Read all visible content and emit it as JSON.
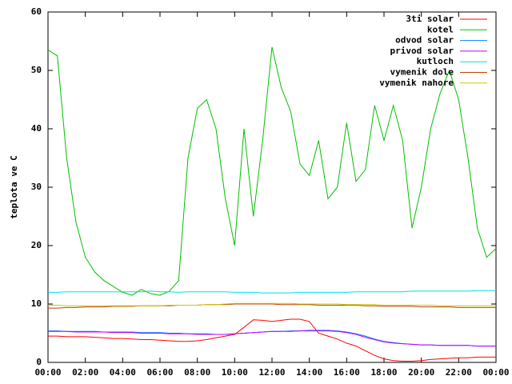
{
  "chart_data": {
    "type": "line",
    "ylabel": "teplota ve C",
    "x": [
      0,
      0.5,
      1,
      1.5,
      2,
      2.5,
      3,
      3.5,
      4,
      4.5,
      5,
      5.5,
      6,
      6.5,
      7,
      7.5,
      8,
      8.5,
      9,
      9.5,
      10,
      10.5,
      11,
      11.5,
      12,
      12.5,
      13,
      13.5,
      14,
      14.5,
      15,
      15.5,
      16,
      16.5,
      17,
      17.5,
      18,
      18.5,
      19,
      19.5,
      20,
      20.5,
      21,
      21.5,
      22,
      22.5,
      23,
      23.5,
      24
    ],
    "xlim": [
      0,
      24
    ],
    "xticks": [
      {
        "value": 0,
        "label": "00:00"
      },
      {
        "value": 2,
        "label": "02:00"
      },
      {
        "value": 4,
        "label": "04:00"
      },
      {
        "value": 6,
        "label": "06:00"
      },
      {
        "value": 8,
        "label": "08:00"
      },
      {
        "value": 10,
        "label": "10:00"
      },
      {
        "value": 12,
        "label": "12:00"
      },
      {
        "value": 14,
        "label": "14:00"
      },
      {
        "value": 16,
        "label": "16:00"
      },
      {
        "value": 18,
        "label": "18:00"
      },
      {
        "value": 20,
        "label": "20:00"
      },
      {
        "value": 22,
        "label": "22:00"
      },
      {
        "value": 24,
        "label": "00:00"
      }
    ],
    "ylim": [
      0,
      60
    ],
    "yticks": [
      0,
      10,
      20,
      30,
      40,
      50,
      60
    ],
    "legend": "top-right",
    "series": [
      {
        "name": "3ti solar",
        "color": "#ff0000",
        "values": [
          4.5,
          4.5,
          4.4,
          4.4,
          4.4,
          4.3,
          4.2,
          4.1,
          4.1,
          4.0,
          3.9,
          3.9,
          3.8,
          3.7,
          3.6,
          3.6,
          3.7,
          3.9,
          4.2,
          4.5,
          4.8,
          6.0,
          7.3,
          7.2,
          7.0,
          7.2,
          7.4,
          7.4,
          7.0,
          5.0,
          4.5,
          4.0,
          3.3,
          2.8,
          2.0,
          1.2,
          0.6,
          0.3,
          0.2,
          0.2,
          0.3,
          0.5,
          0.6,
          0.7,
          0.8,
          0.8,
          0.9,
          0.9,
          0.9
        ]
      },
      {
        "name": "kotel",
        "color": "#00c000",
        "values": [
          53.5,
          52.5,
          35,
          24,
          18,
          15.5,
          14,
          13,
          12,
          11.5,
          12.5,
          11.8,
          11.5,
          12.2,
          14,
          35,
          43.5,
          45,
          40,
          28,
          20,
          40,
          25,
          38,
          54,
          47,
          43,
          34,
          32,
          38,
          28,
          30,
          41,
          31,
          33,
          44,
          38,
          44,
          38,
          23,
          30,
          40,
          46,
          50,
          45,
          35,
          23,
          18,
          19.5
        ]
      },
      {
        "name": "odvod solar",
        "color": "#0080ff",
        "values": [
          5.4,
          5.4,
          5.3,
          5.3,
          5.3,
          5.3,
          5.2,
          5.2,
          5.2,
          5.2,
          5.1,
          5.1,
          5.1,
          5.0,
          5.0,
          4.9,
          4.9,
          4.9,
          4.8,
          4.8,
          4.9,
          5.0,
          5.1,
          5.2,
          5.3,
          5.3,
          5.4,
          5.4,
          5.5,
          5.5,
          5.5,
          5.4,
          5.2,
          4.9,
          4.5,
          4.0,
          3.6,
          3.4,
          3.2,
          3.1,
          3.0,
          3.0,
          2.9,
          2.9,
          2.9,
          2.9,
          2.8,
          2.8,
          2.8
        ]
      },
      {
        "name": "privod solar",
        "color": "#c000ff",
        "values": [
          5.3,
          5.3,
          5.3,
          5.2,
          5.2,
          5.2,
          5.2,
          5.1,
          5.1,
          5.1,
          5.0,
          5.0,
          5.0,
          4.9,
          4.9,
          4.9,
          4.8,
          4.8,
          4.8,
          4.8,
          4.9,
          5.0,
          5.1,
          5.2,
          5.3,
          5.3,
          5.3,
          5.4,
          5.4,
          5.4,
          5.4,
          5.3,
          5.1,
          4.8,
          4.3,
          3.9,
          3.5,
          3.3,
          3.2,
          3.1,
          3.0,
          3.0,
          2.9,
          2.9,
          2.9,
          2.9,
          2.8,
          2.8,
          2.8
        ]
      },
      {
        "name": "kutloch",
        "color": "#00e0e0",
        "values": [
          12.0,
          12.0,
          12.1,
          12.1,
          12.1,
          12.1,
          12.1,
          12.1,
          12.1,
          12.1,
          12.1,
          12.2,
          12.1,
          12.1,
          12.0,
          12.1,
          12.1,
          12.1,
          12.1,
          12.1,
          12.0,
          12.0,
          12.0,
          11.9,
          11.9,
          11.9,
          11.9,
          12.0,
          12.0,
          12.0,
          12.0,
          12.0,
          12.0,
          12.1,
          12.1,
          12.1,
          12.1,
          12.1,
          12.1,
          12.2,
          12.2,
          12.2,
          12.2,
          12.2,
          12.2,
          12.2,
          12.3,
          12.3,
          12.3
        ]
      },
      {
        "name": "vymenik dole",
        "color": "#c04000",
        "values": [
          9.3,
          9.3,
          9.4,
          9.4,
          9.5,
          9.5,
          9.5,
          9.6,
          9.6,
          9.6,
          9.7,
          9.7,
          9.7,
          9.7,
          9.8,
          9.8,
          9.8,
          9.9,
          9.9,
          9.9,
          10.0,
          10.0,
          10.0,
          10.0,
          10.0,
          9.9,
          9.9,
          9.9,
          9.9,
          9.8,
          9.8,
          9.8,
          9.8,
          9.8,
          9.7,
          9.7,
          9.6,
          9.6,
          9.6,
          9.6,
          9.5,
          9.5,
          9.5,
          9.5,
          9.4,
          9.4,
          9.4,
          9.4,
          9.4
        ]
      },
      {
        "name": "vymenik nahore",
        "color": "#c8c800",
        "values": [
          9.8,
          9.8,
          9.7,
          9.7,
          9.7,
          9.7,
          9.7,
          9.7,
          9.7,
          9.7,
          9.7,
          9.7,
          9.7,
          9.8,
          9.8,
          9.8,
          9.8,
          9.9,
          9.9,
          10.0,
          10.1,
          10.1,
          10.1,
          10.1,
          10.1,
          10.1,
          10.1,
          10.0,
          10.0,
          10.0,
          10.0,
          10.0,
          9.9,
          9.9,
          9.9,
          9.9,
          9.8,
          9.8,
          9.8,
          9.8,
          9.8,
          9.8,
          9.7,
          9.7,
          9.7,
          9.7,
          9.7,
          9.7,
          9.7
        ]
      }
    ]
  }
}
